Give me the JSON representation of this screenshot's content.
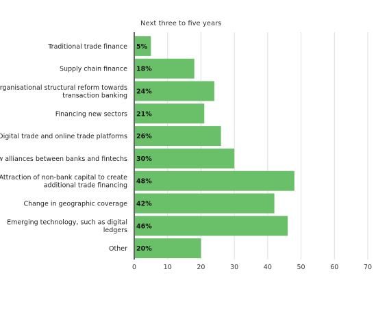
{
  "chart_data": {
    "type": "bar",
    "orientation": "horizontal",
    "subtitle": "Next three to five years",
    "categories": [
      [
        "Traditional trade finance"
      ],
      [
        "Supply chain finance"
      ],
      [
        "Organisational structural reform towards",
        "transaction banking"
      ],
      [
        "Financing new sectors"
      ],
      [
        "Digital trade and online trade platforms"
      ],
      [
        "New alliances between banks and fintechs"
      ],
      [
        "Attraction of non-bank capital to create",
        "additional trade financing"
      ],
      [
        "Change in geographic coverage"
      ],
      [
        "Emerging technology, such as digital",
        "ledgers"
      ],
      [
        "Other"
      ]
    ],
    "values": [
      5,
      18,
      24,
      21,
      26,
      30,
      48,
      42,
      46,
      20
    ],
    "data_labels": [
      "5%",
      "18%",
      "24%",
      "21%",
      "26%",
      "30%",
      "48%",
      "42%",
      "46%",
      "20%"
    ],
    "xlim": [
      0,
      70
    ],
    "xticks": [
      0,
      10,
      20,
      30,
      40,
      50,
      60,
      70
    ],
    "grid": "vertical",
    "bar_color": "#6abf69",
    "grid_color": "#dddddd",
    "axis_color": "#333333"
  }
}
